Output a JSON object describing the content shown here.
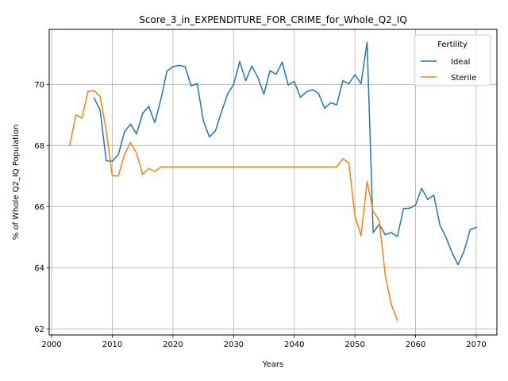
{
  "chart_data": {
    "type": "line",
    "title": "Score_3_in_EXPENDITURE_FOR_CRIME_for_Whole_Q2_IQ",
    "xlabel": "Years",
    "ylabel": "% of Whole Q2_IQ Population",
    "xlim": [
      1999.6,
      2073.4
    ],
    "ylim": [
      61.8,
      71.8
    ],
    "xticks": [
      2000,
      2010,
      2020,
      2030,
      2040,
      2050,
      2060,
      2070
    ],
    "yticks": [
      62,
      64,
      66,
      68,
      70
    ],
    "grid": true,
    "legend": {
      "title": "Fertility",
      "placement": "top-right"
    },
    "series": [
      {
        "name": "Ideal",
        "color": "#1f77b4",
        "x": [
          2007,
          2008,
          2009,
          2010,
          2011,
          2012,
          2013,
          2014,
          2015,
          2016,
          2017,
          2018,
          2019,
          2020,
          2021,
          2022,
          2023,
          2024,
          2025,
          2026,
          2027,
          2028,
          2029,
          2030,
          2031,
          2032,
          2033,
          2034,
          2035,
          2036,
          2037,
          2038,
          2039,
          2040,
          2041,
          2042,
          2043,
          2044,
          2045,
          2046,
          2047,
          2048,
          2049,
          2050,
          2051,
          2052,
          2053,
          2054,
          2055,
          2056,
          2057,
          2058,
          2059,
          2060,
          2061,
          2062,
          2063,
          2064,
          2065,
          2066,
          2067,
          2068,
          2069,
          2070
        ],
        "y": [
          69.55,
          69.15,
          67.5,
          67.48,
          67.7,
          68.45,
          68.7,
          68.38,
          69.05,
          69.28,
          68.75,
          69.5,
          70.43,
          70.58,
          70.62,
          70.58,
          69.95,
          70.02,
          68.82,
          68.28,
          68.48,
          69.1,
          69.68,
          70.0,
          70.75,
          70.12,
          70.6,
          70.22,
          69.68,
          70.45,
          70.33,
          70.73,
          69.98,
          70.1,
          69.58,
          69.75,
          69.83,
          69.7,
          69.22,
          69.4,
          69.33,
          70.12,
          70.02,
          70.32,
          70.02,
          71.38,
          65.15,
          65.42,
          65.08,
          65.15,
          65.02,
          65.93,
          65.95,
          66.05,
          66.6,
          66.23,
          66.38,
          65.4,
          65.0,
          64.5,
          64.1,
          64.55,
          65.25,
          65.32
        ]
      },
      {
        "name": "Sterile",
        "color": "#ff7f0e",
        "x": [
          2003,
          2004,
          2005,
          2006,
          2007,
          2008,
          2009,
          2010,
          2011,
          2012,
          2013,
          2014,
          2015,
          2016,
          2017,
          2018,
          2019,
          2020,
          2021,
          2022,
          2023,
          2024,
          2025,
          2026,
          2027,
          2028,
          2029,
          2030,
          2031,
          2032,
          2033,
          2034,
          2035,
          2036,
          2037,
          2038,
          2039,
          2040,
          2041,
          2042,
          2043,
          2044,
          2045,
          2046,
          2047,
          2048,
          2049,
          2050,
          2051,
          2052,
          2053,
          2054,
          2055,
          2056,
          2057
        ],
        "y": [
          68.02,
          69.0,
          68.9,
          69.77,
          69.8,
          69.6,
          68.5,
          67.01,
          67.0,
          67.7,
          68.1,
          67.75,
          67.05,
          67.25,
          67.15,
          67.3,
          67.3,
          67.3,
          67.3,
          67.3,
          67.3,
          67.3,
          67.3,
          67.3,
          67.3,
          67.3,
          67.3,
          67.3,
          67.3,
          67.3,
          67.3,
          67.3,
          67.3,
          67.3,
          67.3,
          67.3,
          67.3,
          67.3,
          67.3,
          67.3,
          67.3,
          67.3,
          67.3,
          67.3,
          67.3,
          67.57,
          67.43,
          65.7,
          65.05,
          66.82,
          65.85,
          65.55,
          63.75,
          62.8,
          62.28
        ]
      }
    ]
  }
}
